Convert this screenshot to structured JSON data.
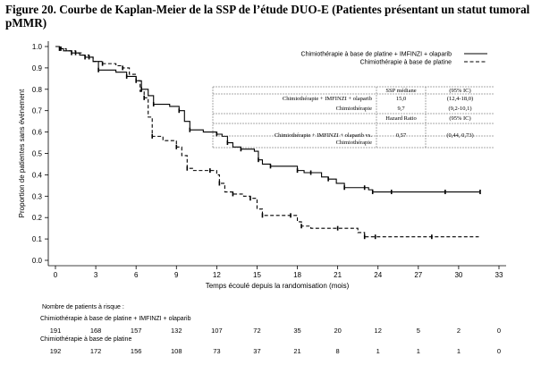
{
  "figure_title": "Figure 20. Courbe de Kaplan-Meier de la SSP de l’étude DUO-E (Patientes présentant un statut tumoral pMMR)",
  "chart_data": {
    "type": "line",
    "subtype": "kaplan-meier",
    "xlabel": "Temps écoulé depuis la randomisation (mois)",
    "ylabel": "Proportion de patientes sans événement",
    "xlim": [
      0,
      33
    ],
    "ylim": [
      0,
      1.0
    ],
    "xticks": [
      0,
      3,
      6,
      9,
      12,
      15,
      18,
      21,
      24,
      27,
      30,
      33
    ],
    "yticks": [
      "0.0",
      "0.1",
      "0.2",
      "0.3",
      "0.4",
      "0.5",
      "0.6",
      "0.7",
      "0.8",
      "0.9",
      "1.0"
    ],
    "legend_position": "top-right",
    "series": [
      {
        "name": "Chimiothérapie à base de platine + IMFINZI + olaparib",
        "style": "solid",
        "color": "#000000",
        "x": [
          0,
          0.3,
          0.6,
          1.2,
          1.8,
          2.2,
          2.8,
          3.2,
          4.5,
          5.3,
          6.0,
          6.4,
          6.9,
          7.3,
          8.5,
          9.2,
          9.6,
          10.0,
          11.0,
          12.0,
          12.4,
          12.8,
          13.2,
          13.8,
          14.8,
          15.1,
          15.4,
          16.0,
          17.5,
          18.0,
          18.5,
          19.0,
          19.8,
          20.3,
          20.9,
          21.5,
          22.5,
          23.0,
          23.3,
          23.6,
          24.0,
          25.0,
          27.0,
          29.0,
          31.0,
          31.6
        ],
        "y": [
          1.0,
          0.99,
          0.98,
          0.97,
          0.96,
          0.95,
          0.93,
          0.89,
          0.88,
          0.86,
          0.84,
          0.8,
          0.77,
          0.73,
          0.72,
          0.7,
          0.65,
          0.61,
          0.6,
          0.59,
          0.58,
          0.55,
          0.53,
          0.52,
          0.51,
          0.47,
          0.45,
          0.44,
          0.44,
          0.42,
          0.41,
          0.41,
          0.39,
          0.38,
          0.36,
          0.34,
          0.34,
          0.34,
          0.33,
          0.32,
          0.32,
          0.32,
          0.32,
          0.32,
          0.32,
          0.32
        ]
      },
      {
        "name": "Chimiothérapie à base de platine",
        "style": "dashed",
        "color": "#000000",
        "x": [
          0,
          0.4,
          0.8,
          1.5,
          2.0,
          2.5,
          2.8,
          3.5,
          4.5,
          5.0,
          5.5,
          6.0,
          6.3,
          6.6,
          6.9,
          7.2,
          8.0,
          9.0,
          9.4,
          9.8,
          10.2,
          11.5,
          12.0,
          12.2,
          12.6,
          13.2,
          14.0,
          14.5,
          15.0,
          15.4,
          16.5,
          17.5,
          18.0,
          18.3,
          19.0,
          21.0,
          22.5,
          23.0,
          23.3,
          23.8,
          25.0,
          28.0,
          31.5
        ],
        "y": [
          1.0,
          0.99,
          0.98,
          0.97,
          0.96,
          0.95,
          0.93,
          0.92,
          0.91,
          0.9,
          0.87,
          0.84,
          0.79,
          0.76,
          0.67,
          0.58,
          0.56,
          0.53,
          0.49,
          0.43,
          0.42,
          0.42,
          0.4,
          0.36,
          0.32,
          0.31,
          0.3,
          0.29,
          0.24,
          0.21,
          0.21,
          0.21,
          0.18,
          0.16,
          0.15,
          0.15,
          0.13,
          0.11,
          0.11,
          0.11,
          0.11,
          0.11,
          0.11
        ]
      }
    ],
    "summary_table": {
      "header": [
        "",
        "SSP médiane",
        "(95% IC)"
      ],
      "rows": [
        [
          "Chimiothérapie + IMFINZI + olaparib",
          "15,0",
          "(12,4-18,0)"
        ],
        [
          "Chimiothérapie",
          "9,7",
          "(9,2-10,1)"
        ],
        [
          "",
          "Hazard Ratio",
          "(95% IC)"
        ],
        [
          "Chimiothérapie + IMFINZI + olaparib vs. Chimiothérapie",
          "0,57",
          "(0,44, 0,73)"
        ]
      ]
    }
  },
  "risk_table": {
    "title": "Nombre de patients à risque :",
    "rows": [
      {
        "label": "Chimiothérapie à base de platine + IMFINZI + olaparib",
        "values": [
          "191",
          "168",
          "157",
          "132",
          "107",
          "72",
          "35",
          "20",
          "12",
          "5",
          "2",
          "0"
        ]
      },
      {
        "label": "Chimiothérapie à base de platine",
        "values": [
          "192",
          "172",
          "156",
          "108",
          "73",
          "37",
          "21",
          "8",
          "1",
          "1",
          "1",
          "0"
        ]
      }
    ]
  }
}
